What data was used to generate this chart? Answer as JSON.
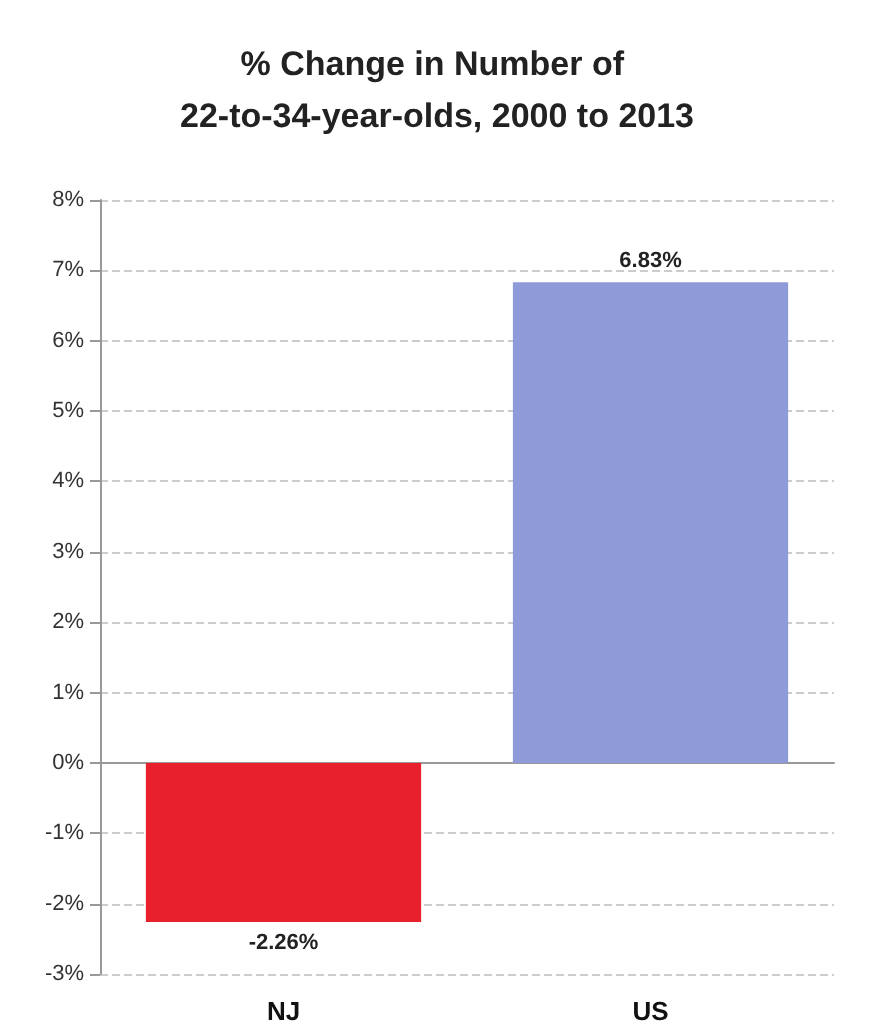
{
  "chart_data": {
    "type": "bar",
    "title": "% Change in Number of 22-to-34-year-olds, 2000 to 2013",
    "categories": [
      "NJ",
      "US"
    ],
    "values": [
      -2.26,
      6.83
    ],
    "colors": [
      "#e8202c",
      "#8f9bd8"
    ],
    "value_labels": [
      "-2.26%",
      "6.83%"
    ],
    "ylim": [
      -3,
      8
    ],
    "yticks": [
      {
        "value": -3,
        "label": "-3%"
      },
      {
        "value": -2,
        "label": "-2%"
      },
      {
        "value": -1,
        "label": "-1%"
      },
      {
        "value": 0,
        "label": "0%"
      },
      {
        "value": 1,
        "label": "1%"
      },
      {
        "value": 2,
        "label": "2%"
      },
      {
        "value": 3,
        "label": "3%"
      },
      {
        "value": 4,
        "label": "4%"
      },
      {
        "value": 5,
        "label": "5%"
      },
      {
        "value": 6,
        "label": "6%"
      },
      {
        "value": 7,
        "label": "7%"
      },
      {
        "value": 8,
        "label": "8%"
      }
    ],
    "grid": "y"
  }
}
